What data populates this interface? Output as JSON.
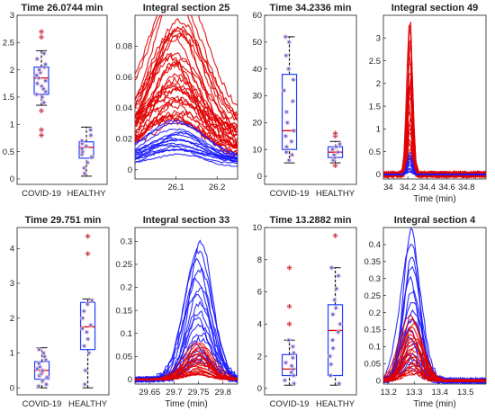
{
  "chart_data": [
    {
      "type": "box",
      "title": "Time 26.0744 min",
      "categories": [
        "COVID-19",
        "HEALTHY"
      ],
      "ylim": [
        -0.1,
        3.0
      ],
      "yticks": [
        "0",
        "0.5",
        "1",
        "1.5",
        "2",
        "2.5",
        "3"
      ],
      "boxes": [
        {
          "label": "COVID-19",
          "q1": 1.55,
          "median": 1.85,
          "q3": 2.05,
          "whisker_low": 1.35,
          "whisker_high": 2.35,
          "points": [
            1.4,
            1.5,
            1.6,
            1.7,
            1.75,
            1.8,
            1.85,
            1.9,
            1.95,
            2.0,
            2.05,
            2.1,
            2.2,
            2.3,
            1.65,
            1.55
          ],
          "outliers": [
            0.8,
            0.9,
            2.6,
            2.7,
            1.25
          ]
        },
        {
          "label": "HEALTHY",
          "q1": 0.38,
          "median": 0.58,
          "q3": 0.68,
          "whisker_low": 0.05,
          "whisker_high": 0.95,
          "points": [
            0.1,
            0.2,
            0.3,
            0.4,
            0.45,
            0.5,
            0.55,
            0.6,
            0.65,
            0.7,
            0.8,
            0.9
          ],
          "outliers": []
        }
      ]
    },
    {
      "type": "line",
      "title": "Integral section 25",
      "xlabel": "",
      "xlim": [
        26.0,
        26.25
      ],
      "ylim": [
        -0.006,
        0.1
      ],
      "xticks": [
        "26.1",
        "26.2"
      ],
      "yticks": [
        "0",
        "0.02",
        "0.04",
        "0.06",
        "0.08"
      ],
      "peak_x": 26.1,
      "peak_width": 0.06,
      "series": [
        {
          "color": "#e00000",
          "count": 34,
          "peak_min": 0.015,
          "peak_max": 0.09,
          "baseline": 0.02
        },
        {
          "color": "#1a1aff",
          "count": 16,
          "peak_min": 0.006,
          "peak_max": 0.025,
          "baseline": 0.005
        }
      ]
    },
    {
      "type": "box",
      "title": "Time 34.2336 min",
      "categories": [
        "COVID-19",
        "HEALTHY"
      ],
      "ylim": [
        -3,
        60
      ],
      "yticks": [
        "0",
        "10",
        "20",
        "30",
        "40",
        "50",
        "60"
      ],
      "boxes": [
        {
          "label": "COVID-19",
          "q1": 10,
          "median": 17,
          "q3": 38,
          "whisker_low": 5,
          "whisker_high": 52,
          "points": [
            6,
            8,
            9,
            11,
            13,
            15,
            17,
            20,
            24,
            28,
            32,
            36,
            40,
            45,
            50,
            52
          ],
          "outliers": []
        },
        {
          "label": "HEALTHY",
          "q1": 7,
          "median": 9,
          "q3": 11,
          "whisker_low": 5,
          "whisker_high": 13,
          "points": [
            6,
            7,
            8,
            9,
            10,
            11,
            12
          ],
          "outliers": [
            15,
            16,
            4
          ]
        }
      ]
    },
    {
      "type": "line",
      "title": "Integral section 49",
      "xlabel": "Time (min)",
      "xlim": [
        33.95,
        35.0
      ],
      "ylim": [
        -0.1,
        3.5
      ],
      "xticks": [
        "34",
        "34.2",
        "34.4",
        "34.6",
        "34.8"
      ],
      "yticks": [
        "0",
        "0.5",
        "1",
        "1.5",
        "2",
        "2.5",
        "3"
      ],
      "peak_x": 34.22,
      "peak_width": 0.025,
      "series": [
        {
          "color": "#e00000",
          "count": 24,
          "peak_min": 0.3,
          "peak_max": 3.5,
          "baseline": 0.0
        },
        {
          "color": "#1a1aff",
          "count": 10,
          "peak_min": 0.05,
          "peak_max": 0.5,
          "baseline": 0.0
        }
      ]
    },
    {
      "type": "box",
      "title": "Time 29.751 min",
      "categories": [
        "COVID-19",
        "HEALTHY"
      ],
      "ylim": [
        -0.2,
        4.6
      ],
      "yticks": [
        "0",
        "1",
        "2",
        "3",
        "4"
      ],
      "boxes": [
        {
          "label": "COVID-19",
          "q1": 0.25,
          "median": 0.5,
          "q3": 0.75,
          "whisker_low": 0.0,
          "whisker_high": 1.15,
          "points": [
            0.05,
            0.1,
            0.2,
            0.3,
            0.35,
            0.4,
            0.45,
            0.5,
            0.55,
            0.6,
            0.7,
            0.8,
            0.9,
            1.0,
            1.1
          ],
          "outliers": []
        },
        {
          "label": "HEALTHY",
          "q1": 1.1,
          "median": 1.75,
          "q3": 2.45,
          "whisker_low": 0.0,
          "whisker_high": 2.55,
          "points": [
            0.1,
            0.5,
            1.0,
            1.2,
            1.4,
            1.6,
            1.7,
            1.8,
            2.0,
            2.2,
            2.4,
            2.5
          ],
          "outliers": [
            3.85,
            4.35
          ]
        }
      ]
    },
    {
      "type": "line",
      "title": "Integral section 33",
      "xlabel": "Time (min)",
      "xlim": [
        29.62,
        29.83
      ],
      "ylim": [
        -0.01,
        0.33
      ],
      "xticks": [
        "29.65",
        "29.7",
        "29.75",
        "29.8"
      ],
      "yticks": [
        "0",
        "0.05",
        "0.1",
        "0.15",
        "0.2",
        "0.25",
        "0.3"
      ],
      "peak_x": 29.75,
      "peak_width": 0.025,
      "series": [
        {
          "color": "#1a1aff",
          "count": 18,
          "peak_min": 0.04,
          "peak_max": 0.3,
          "baseline": 0.0
        },
        {
          "color": "#e00000",
          "count": 22,
          "peak_min": 0.01,
          "peak_max": 0.08,
          "baseline": 0.0
        }
      ]
    },
    {
      "type": "box",
      "title": "Time 13.2882 min",
      "categories": [
        "COVID-19",
        "HEALTHY"
      ],
      "ylim": [
        -0.4,
        10
      ],
      "yticks": [
        "0",
        "2",
        "4",
        "6",
        "8",
        "10"
      ],
      "boxes": [
        {
          "label": "COVID-19",
          "q1": 0.8,
          "median": 1.2,
          "q3": 2.1,
          "whisker_low": 0.2,
          "whisker_high": 3.0,
          "points": [
            0.3,
            0.5,
            0.8,
            1.0,
            1.2,
            1.4,
            1.6,
            1.9,
            2.2,
            2.6,
            3.0
          ],
          "outliers": [
            4.0,
            5.1,
            7.5
          ]
        },
        {
          "label": "HEALTHY",
          "q1": 0.8,
          "median": 3.6,
          "q3": 5.2,
          "whisker_low": 0.2,
          "whisker_high": 7.5,
          "points": [
            0.3,
            0.8,
            1.5,
            2.0,
            2.5,
            3.0,
            3.5,
            4.0,
            4.6,
            5.0,
            5.5,
            6.2,
            7.0,
            7.5
          ],
          "outliers": [
            9.5
          ]
        }
      ]
    },
    {
      "type": "line",
      "title": "Integral section 4",
      "xlabel": "Time (min)",
      "xlim": [
        13.18,
        13.58
      ],
      "ylim": [
        -0.01,
        0.45
      ],
      "xticks": [
        "13.2",
        "13.3",
        "13.4",
        "13.5"
      ],
      "yticks": [
        "0",
        "0.05",
        "0.1",
        "0.15",
        "0.2",
        "0.25",
        "0.3",
        "0.35",
        "0.4"
      ],
      "peak_x": 13.29,
      "peak_width": 0.035,
      "series": [
        {
          "color": "#1a1aff",
          "count": 16,
          "peak_min": 0.04,
          "peak_max": 0.44,
          "baseline": 0.0
        },
        {
          "color": "#e00000",
          "count": 22,
          "peak_min": 0.02,
          "peak_max": 0.19,
          "baseline": 0.0
        }
      ]
    }
  ]
}
